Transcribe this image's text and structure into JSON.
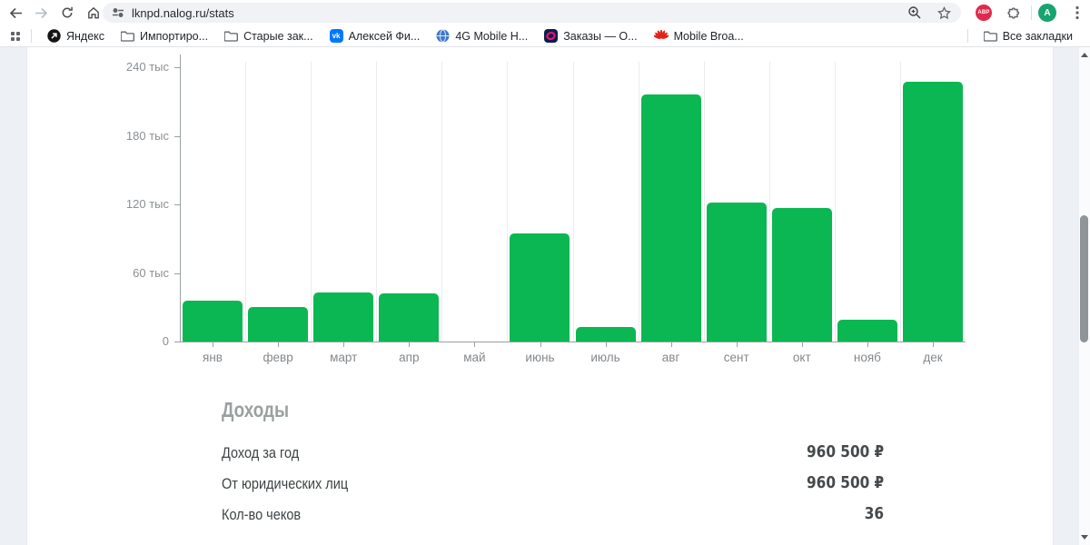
{
  "browser": {
    "url": "lknpd.nalog.ru/stats",
    "profile_initial": "A",
    "extension_badge": "ABP",
    "bookmarks_bar": {
      "items": [
        {
          "label": "Яндекс",
          "icon": "yandex-icon"
        },
        {
          "label": "Импортиро...",
          "icon": "folder-icon"
        },
        {
          "label": "Старые зак...",
          "icon": "folder-icon"
        },
        {
          "label": "Алексей Фи...",
          "icon": "vk-icon"
        },
        {
          "label": "4G Mobile H...",
          "icon": "globe-icon"
        },
        {
          "label": "Заказы — О...",
          "icon": "ozon-icon"
        },
        {
          "label": "Mobile Broa...",
          "icon": "huawei-icon"
        }
      ],
      "all_bookmarks_label": "Все закладки"
    }
  },
  "chart_data": {
    "type": "bar",
    "title": "",
    "xlabel": "",
    "ylabel": "",
    "categories": [
      "янв",
      "февр",
      "март",
      "апр",
      "май",
      "июнь",
      "июль",
      "авг",
      "сент",
      "окт",
      "нояб",
      "дек"
    ],
    "values": [
      36000,
      30000,
      43000,
      42000,
      0,
      95000,
      13000,
      216000,
      122000,
      117000,
      19500,
      227000
    ],
    "y_ticks": [
      0,
      60000,
      120000,
      180000,
      240000
    ],
    "y_tick_labels": [
      "0",
      "60 тыс",
      "120 тыс",
      "180 тыс",
      "240 тыс"
    ],
    "ylim": [
      0,
      240000
    ],
    "bar_color": "#0bb752",
    "grid": "vertical-light",
    "legend": "none"
  },
  "income": {
    "title": "Доходы",
    "rows": [
      {
        "label": "Доход за год",
        "value": "960 500 ₽"
      },
      {
        "label": "От юридических лиц",
        "value": "960 500 ₽"
      },
      {
        "label": "Кол-во чеков",
        "value": "36"
      }
    ]
  }
}
